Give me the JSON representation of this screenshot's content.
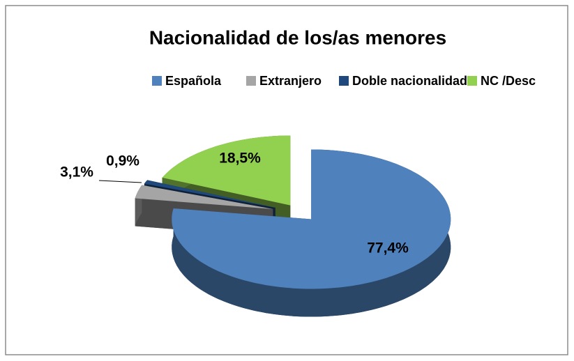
{
  "chart_data": {
    "type": "pie",
    "title": "Nacionalidad de los/as menores",
    "categories": [
      "Española",
      "Extranjero",
      "Doble nacionalidad",
      "NC /Desc"
    ],
    "values": [
      77.4,
      3.1,
      0.9,
      18.5
    ],
    "value_labels": [
      "77,4%",
      "3,1%",
      "0,9%",
      "18,5%"
    ],
    "colors": [
      "#4f81bd",
      "#a5a5a5",
      "#1f497d",
      "#92d050"
    ],
    "legend": "top"
  }
}
